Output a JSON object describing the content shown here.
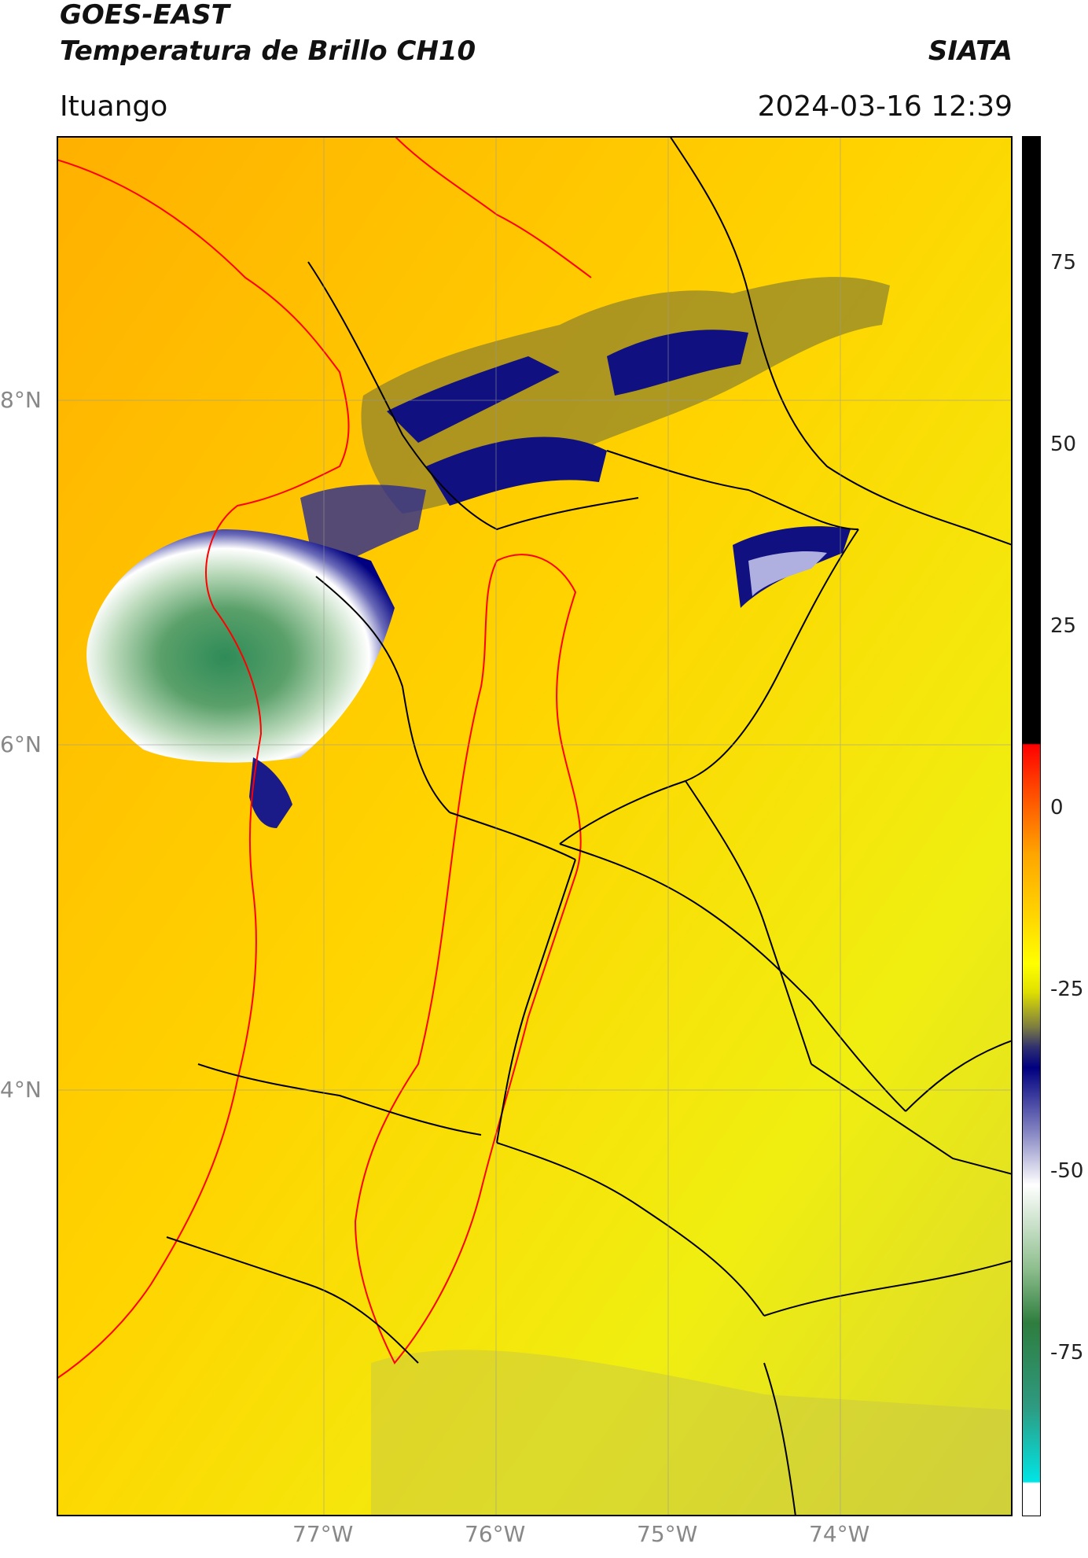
{
  "header": {
    "title_line1": "GOES-EAST",
    "title_line2": "Temperatura de Brillo CH10",
    "org": "SIATA",
    "region": "Ituango",
    "datetime": "2024-03-16 12:39"
  },
  "map": {
    "lat_labels": [
      "8°N",
      "6°N",
      "4°N"
    ],
    "lon_labels": [
      "77°W",
      "76°W",
      "75°W",
      "74°W"
    ]
  },
  "colorbar": {
    "tick_labels": [
      "75",
      "50",
      "25",
      "0",
      "-25",
      "-50",
      "-75"
    ],
    "colors": {
      "hot": "#000000",
      "warm": "#ff0000",
      "orange": "#ffa500",
      "yellow": "#ffff00",
      "olive": "#7f7f3f",
      "navy": "#000080",
      "white": "#ffffff",
      "green": "#2e8b57",
      "cyan": "#00e5e5"
    }
  }
}
